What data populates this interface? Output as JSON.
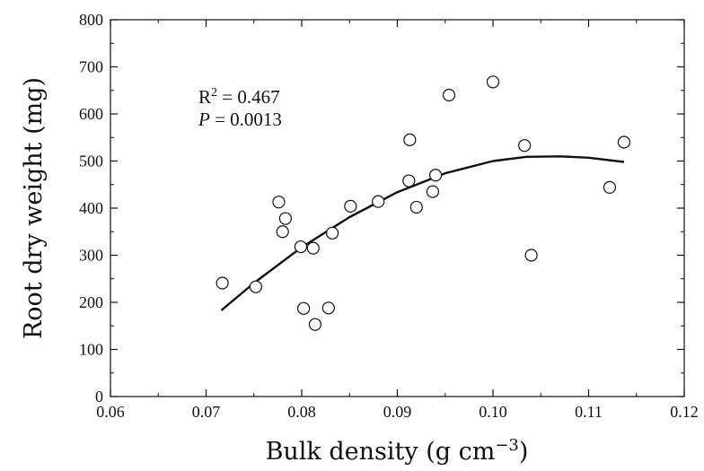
{
  "chart_data": {
    "type": "scatter",
    "xlabel": "Bulk density (g cm",
    "xlabel_sup": "−3",
    "xlabel_end": ")",
    "ylabel": "Root dry weight (mg)",
    "xlim": [
      0.06,
      0.12
    ],
    "ylim": [
      0,
      800
    ],
    "x_ticks": [
      0.06,
      0.07,
      0.08,
      0.09,
      0.1,
      0.11,
      0.12
    ],
    "x_tick_labels": [
      "0.06",
      "0.07",
      "0.08",
      "0.09",
      "0.10",
      "0.11",
      "0.12"
    ],
    "y_ticks": [
      0,
      100,
      200,
      300,
      400,
      500,
      600,
      700,
      800
    ],
    "y_tick_labels": [
      "0",
      "100",
      "200",
      "300",
      "400",
      "500",
      "600",
      "700",
      "800"
    ],
    "grid": false,
    "annotation": {
      "r2_prefix": "R",
      "r2_sup": "2",
      "r2_value": " = 0.467",
      "p_label": "P",
      "p_value": " = 0.0013"
    },
    "points": [
      {
        "x": 0.0717,
        "y": 241
      },
      {
        "x": 0.0752,
        "y": 233
      },
      {
        "x": 0.0776,
        "y": 413
      },
      {
        "x": 0.078,
        "y": 350
      },
      {
        "x": 0.0783,
        "y": 378
      },
      {
        "x": 0.0799,
        "y": 318
      },
      {
        "x": 0.0802,
        "y": 187
      },
      {
        "x": 0.0812,
        "y": 315
      },
      {
        "x": 0.0814,
        "y": 153
      },
      {
        "x": 0.0828,
        "y": 188
      },
      {
        "x": 0.0832,
        "y": 347
      },
      {
        "x": 0.0851,
        "y": 404
      },
      {
        "x": 0.088,
        "y": 414
      },
      {
        "x": 0.0912,
        "y": 458
      },
      {
        "x": 0.0913,
        "y": 545
      },
      {
        "x": 0.092,
        "y": 402
      },
      {
        "x": 0.0937,
        "y": 435
      },
      {
        "x": 0.094,
        "y": 470
      },
      {
        "x": 0.0954,
        "y": 640
      },
      {
        "x": 0.1,
        "y": 668
      },
      {
        "x": 0.1033,
        "y": 533
      },
      {
        "x": 0.104,
        "y": 300
      },
      {
        "x": 0.1122,
        "y": 444
      },
      {
        "x": 0.1137,
        "y": 540
      }
    ],
    "fit_curve": {
      "x": [
        0.0716,
        0.075,
        0.08,
        0.085,
        0.09,
        0.095,
        0.1,
        0.1035,
        0.107,
        0.11,
        0.1137
      ],
      "y": [
        183,
        241,
        317,
        381,
        434,
        474,
        500,
        509,
        510,
        507,
        498
      ]
    }
  }
}
